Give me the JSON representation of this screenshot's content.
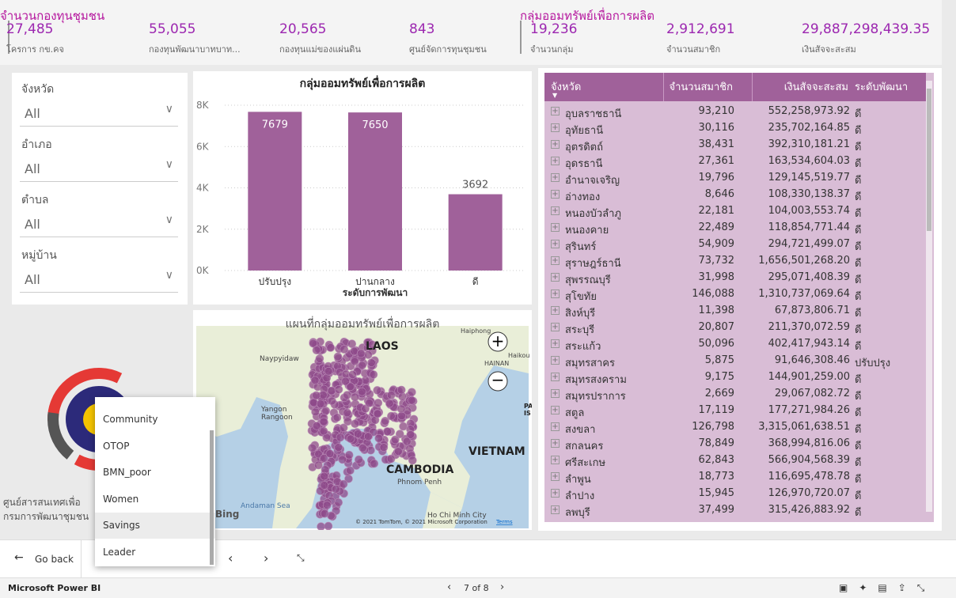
{
  "header": {
    "groups": [
      {
        "title": "จำนวนกองทุนชุมชน",
        "kpis": [
          {
            "value": "27,485",
            "label": "โครการ กข.คจ"
          },
          {
            "value": "55,055",
            "label": "กองทุนพัฒนาบาทบาท..."
          },
          {
            "value": "20,565",
            "label": "กองทุนแม่ของแผ่นดิน"
          },
          {
            "value": "843",
            "label": "ศูนย์จัดการทุนชุมชน"
          }
        ]
      },
      {
        "title": "กลุ่มออมทรัพย์เพื่อการผลิต",
        "kpis": [
          {
            "value": "19,236",
            "label": "จำนวนกลุ่ม"
          },
          {
            "value": "2,912,691",
            "label": "จำนวนสมาชิก"
          },
          {
            "value": "29,887,298,439.35",
            "label": "เงินสัจจะสะสม"
          }
        ]
      }
    ]
  },
  "slicers": [
    {
      "label": "จังหวัด",
      "value": "All"
    },
    {
      "label": "อำเภอ",
      "value": "All"
    },
    {
      "label": "ตำบล",
      "value": "All"
    },
    {
      "label": "หมู่บ้าน",
      "value": "All"
    }
  ],
  "chart_data": {
    "type": "bar",
    "title": "กลุ่มออมทรัพย์เพื่อการผลิต",
    "x_label": "ระดับการพัฒนา",
    "categories": [
      "ปรับปรุง",
      "ปานกลาง",
      "ดี"
    ],
    "values": [
      7679,
      7650,
      3692
    ],
    "color": "#a0619a",
    "ylim": [
      0,
      8000
    ],
    "yticks": [
      {
        "value": 0,
        "label": "0K"
      },
      {
        "value": 2000,
        "label": "2K"
      },
      {
        "value": 4000,
        "label": "4K"
      },
      {
        "value": 6000,
        "label": "6K"
      },
      {
        "value": 8000,
        "label": "8K"
      }
    ],
    "grid": true
  },
  "map": {
    "title": "แผนที่กลุ่มออมทรัพย์เพื่อการผลิต",
    "labels": [
      "LAOS",
      "VIETNAM",
      "CAMBODIA",
      "Naypyidaw",
      "Yangon",
      "Rangoon",
      "Andaman Sea",
      "Phnom Penh",
      "Ho Chi Minh City",
      "HAINAN",
      "Haiphong",
      "Haikou",
      "PA",
      "IS",
      "Bing"
    ],
    "copyright": "© 2021 TomTom, © 2021 Microsoft Corporation",
    "terms": "Terms"
  },
  "table": {
    "columns": [
      "จังหวัด",
      "จำนวนสมาชิก",
      "เงินสัจจะสะสม",
      "ระดับพัฒนา"
    ],
    "rows": [
      [
        "อุบลราชธานี",
        "93,210",
        "552,258,973.92",
        "ดี"
      ],
      [
        "อุทัยธานี",
        "30,116",
        "235,702,164.85",
        "ดี"
      ],
      [
        "อุตรดิตถ์",
        "38,431",
        "392,310,181.21",
        "ดี"
      ],
      [
        "อุดรธานี",
        "27,361",
        "163,534,604.03",
        "ดี"
      ],
      [
        "อำนาจเจริญ",
        "19,796",
        "129,145,519.77",
        "ดี"
      ],
      [
        "อ่างทอง",
        "8,646",
        "108,330,138.37",
        "ดี"
      ],
      [
        "หนองบัวลำภู",
        "22,181",
        "104,003,553.74",
        "ดี"
      ],
      [
        "หนองคาย",
        "22,489",
        "118,854,771.44",
        "ดี"
      ],
      [
        "สุรินทร์",
        "54,909",
        "294,721,499.07",
        "ดี"
      ],
      [
        "สุราษฎร์ธานี",
        "73,732",
        "1,656,501,268.20",
        "ดี"
      ],
      [
        "สุพรรณบุรี",
        "31,998",
        "295,071,408.39",
        "ดี"
      ],
      [
        "สุโขทัย",
        "146,088",
        "1,310,737,069.64",
        "ดี"
      ],
      [
        "สิงห์บุรี",
        "11,398",
        "67,873,806.71",
        "ดี"
      ],
      [
        "สระบุรี",
        "20,807",
        "211,370,072.59",
        "ดี"
      ],
      [
        "สระแก้ว",
        "50,096",
        "402,417,943.14",
        "ดี"
      ],
      [
        "สมุทรสาคร",
        "5,875",
        "91,646,308.46",
        "ปรับปรุง"
      ],
      [
        "สมุทรสงคราม",
        "9,175",
        "144,901,259.00",
        "ดี"
      ],
      [
        "สมุทรปราการ",
        "2,669",
        "29,067,082.72",
        "ดี"
      ],
      [
        "สตูล",
        "17,119",
        "177,271,984.26",
        "ดี"
      ],
      [
        "สงขลา",
        "126,798",
        "3,315,061,638.51",
        "ดี"
      ],
      [
        "สกลนคร",
        "78,849",
        "368,994,816.06",
        "ดี"
      ],
      [
        "ศรีสะเกษ",
        "62,843",
        "566,904,568.39",
        "ดี"
      ],
      [
        "ลำพูน",
        "18,773",
        "116,695,478.78",
        "ดี"
      ],
      [
        "ลำปาง",
        "15,945",
        "126,970,720.07",
        "ดี"
      ],
      [
        "ลพบุรี",
        "37,499",
        "315,426,883.92",
        "ดี"
      ]
    ]
  },
  "logo_text": [
    "ศูนย์สารสนเทศเพื่อ",
    "กรมการพัฒนาชุมชน"
  ],
  "menu": {
    "items": [
      "Community",
      "OTOP",
      "BMN_poor",
      "Women",
      "Savings",
      "Leader"
    ],
    "selected": "Savings"
  },
  "nav": {
    "back": "Go back"
  },
  "footer": {
    "brand": "Microsoft Power BI",
    "page": "7 of 8"
  }
}
